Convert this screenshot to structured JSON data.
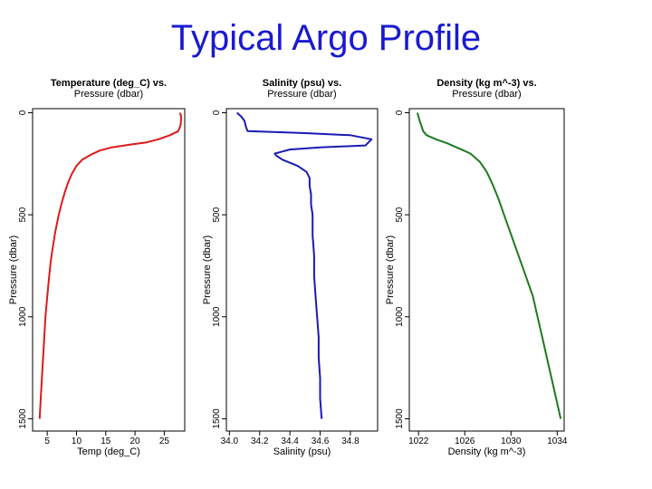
{
  "slide": {
    "title": "Typical Argo Profile"
  },
  "chart_data": [
    {
      "type": "line",
      "title": "Temperature (deg_C) vs.",
      "subtitle": "Pressure (dbar)",
      "xlabel": "Temp (deg_C)",
      "ylabel": "Pressure (dbar)",
      "xlim": [
        2.5,
        28.5
      ],
      "ylim": [
        1560,
        -20
      ],
      "x_ticks": [
        5,
        10,
        15,
        20,
        25
      ],
      "y_ticks": [
        0,
        500,
        1000,
        1500
      ],
      "grid": false,
      "colors": {
        "line": "#dd1a1a"
      },
      "series": [
        {
          "points": [
            [
              27.7,
              0
            ],
            [
              27.9,
              20
            ],
            [
              27.8,
              60
            ],
            [
              27.4,
              90
            ],
            [
              26,
              110
            ],
            [
              24,
              130
            ],
            [
              22,
              145
            ],
            [
              19.5,
              155
            ],
            [
              16,
              170
            ],
            [
              14,
              185
            ],
            [
              12.5,
              205
            ],
            [
              11,
              230
            ],
            [
              10,
              260
            ],
            [
              9.2,
              300
            ],
            [
              8.6,
              340
            ],
            [
              8,
              390
            ],
            [
              7.4,
              450
            ],
            [
              6.9,
              510
            ],
            [
              6.4,
              580
            ],
            [
              6,
              650
            ],
            [
              5.6,
              730
            ],
            [
              5.3,
              810
            ],
            [
              5,
              900
            ],
            [
              4.7,
              1000
            ],
            [
              4.5,
              1100
            ],
            [
              4.3,
              1200
            ],
            [
              4.1,
              1300
            ],
            [
              3.9,
              1400
            ],
            [
              3.7,
              1500
            ]
          ]
        }
      ]
    },
    {
      "type": "line",
      "title": "Salinity (psu) vs.",
      "subtitle": "Pressure (dbar)",
      "xlabel": "Salinity (psu)",
      "ylabel": "Pressure (dbar)",
      "xlim": [
        33.98,
        34.98
      ],
      "ylim": [
        1560,
        -20
      ],
      "x_ticks": [
        "34.0",
        "34.2",
        "34.4",
        "34.6",
        "34.8"
      ],
      "y_ticks": [
        0,
        500,
        1000,
        1500
      ],
      "grid": false,
      "colors": {
        "line": "#1a1ab4"
      },
      "series": [
        {
          "points": [
            [
              34.05,
              0
            ],
            [
              34.08,
              20
            ],
            [
              34.1,
              40
            ],
            [
              34.11,
              70
            ],
            [
              34.12,
              90
            ],
            [
              34.5,
              100
            ],
            [
              34.8,
              110
            ],
            [
              34.94,
              130
            ],
            [
              34.9,
              160
            ],
            [
              34.6,
              170
            ],
            [
              34.4,
              180
            ],
            [
              34.35,
              190
            ],
            [
              34.3,
              200
            ],
            [
              34.31,
              210
            ],
            [
              34.35,
              230
            ],
            [
              34.45,
              260
            ],
            [
              34.51,
              290
            ],
            [
              34.53,
              320
            ],
            [
              34.53,
              360
            ],
            [
              34.54,
              400
            ],
            [
              34.54,
              450
            ],
            [
              34.55,
              500
            ],
            [
              34.55,
              600
            ],
            [
              34.56,
              700
            ],
            [
              34.56,
              800
            ],
            [
              34.57,
              900
            ],
            [
              34.58,
              1000
            ],
            [
              34.59,
              1100
            ],
            [
              34.59,
              1200
            ],
            [
              34.6,
              1300
            ],
            [
              34.6,
              1400
            ],
            [
              34.61,
              1500
            ]
          ]
        }
      ]
    },
    {
      "type": "line",
      "title": "Density (kg m^-3) vs.",
      "subtitle": "Pressure (dbar)",
      "xlabel": "Density (kg m^-3)",
      "ylabel": "Pressure (dbar)",
      "xlim": [
        1021.2,
        1034.6
      ],
      "ylim": [
        1560,
        -20
      ],
      "x_ticks": [
        1022,
        1026,
        1030,
        1034
      ],
      "y_ticks": [
        0,
        500,
        1000,
        1500
      ],
      "grid": false,
      "colors": {
        "line": "#1e7a1e"
      },
      "series": [
        {
          "points": [
            [
              1021.9,
              0
            ],
            [
              1022.1,
              40
            ],
            [
              1022.4,
              90
            ],
            [
              1022.7,
              110
            ],
            [
              1023.5,
              130
            ],
            [
              1024.5,
              150
            ],
            [
              1025.5,
              175
            ],
            [
              1026.5,
              200
            ],
            [
              1027.3,
              240
            ],
            [
              1027.9,
              290
            ],
            [
              1028.4,
              350
            ],
            [
              1028.9,
              420
            ],
            [
              1029.4,
              500
            ],
            [
              1029.9,
              580
            ],
            [
              1030.4,
              660
            ],
            [
              1030.9,
              740
            ],
            [
              1031.4,
              820
            ],
            [
              1031.9,
              900
            ],
            [
              1032.3,
              1000
            ],
            [
              1032.7,
              1100
            ],
            [
              1033.1,
              1200
            ],
            [
              1033.5,
              1300
            ],
            [
              1033.9,
              1400
            ],
            [
              1034.3,
              1500
            ]
          ]
        }
      ]
    }
  ]
}
